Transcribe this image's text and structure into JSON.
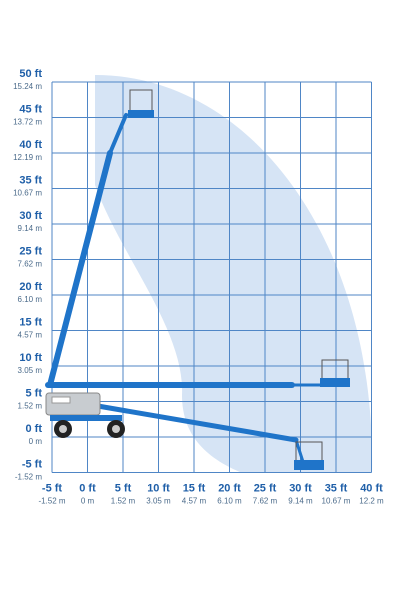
{
  "y_axis_labels": [
    {
      "ft": "50 ft",
      "m": "15.24 m"
    },
    {
      "ft": "45 ft",
      "m": "13.72 m"
    },
    {
      "ft": "40 ft",
      "m": "12.19 m"
    },
    {
      "ft": "35 ft",
      "m": "10.67 m"
    },
    {
      "ft": "30 ft",
      "m": "9.14 m"
    },
    {
      "ft": "25 ft",
      "m": "7.62 m"
    },
    {
      "ft": "20 ft",
      "m": "6.10 m"
    },
    {
      "ft": "15 ft",
      "m": "4.57 m"
    },
    {
      "ft": "10 ft",
      "m": "3.05 m"
    },
    {
      "ft": "5 ft",
      "m": "1.52 m"
    },
    {
      "ft": "0 ft",
      "m": "0 m"
    },
    {
      "ft": "-5 ft",
      "m": "-1.52 m"
    }
  ],
  "x_axis_labels": [
    {
      "ft": "-5 ft",
      "m": "-1.52 m"
    },
    {
      "ft": "0 ft",
      "m": "0 m"
    },
    {
      "ft": "5 ft",
      "m": "1.52 m"
    },
    {
      "ft": "10 ft",
      "m": "3.05 m"
    },
    {
      "ft": "15 ft",
      "m": "4.57 m"
    },
    {
      "ft": "20 ft",
      "m": "6.10 m"
    },
    {
      "ft": "25 ft",
      "m": "7.62 m"
    },
    {
      "ft": "30 ft",
      "m": "9.14 m"
    },
    {
      "ft": "35 ft",
      "m": "10.67 m"
    },
    {
      "ft": "40 ft",
      "m": "12.2 m"
    }
  ]
}
